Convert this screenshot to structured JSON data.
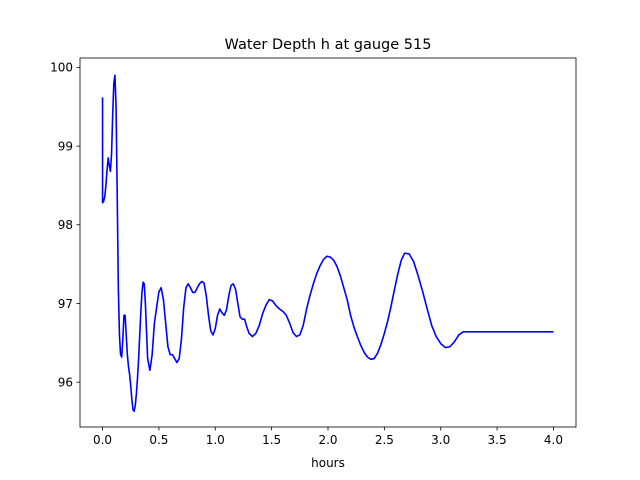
{
  "chart_data": {
    "type": "line",
    "title": "Water Depth h at gauge 515",
    "xlabel": "hours",
    "ylabel": "",
    "xlim": [
      -0.2,
      4.2
    ],
    "ylim": [
      95.43,
      100.12
    ],
    "xticks": [
      0.0,
      0.5,
      1.0,
      1.5,
      2.0,
      2.5,
      3.0,
      3.5,
      4.0
    ],
    "xtick_labels": [
      "0.0",
      "0.5",
      "1.0",
      "1.5",
      "2.0",
      "2.5",
      "3.0",
      "3.5",
      "4.0"
    ],
    "yticks": [
      96,
      97,
      98,
      99,
      100
    ],
    "ytick_labels": [
      "96",
      "97",
      "98",
      "99",
      "100"
    ],
    "grid": false,
    "legend": null,
    "series": [
      {
        "color": "#0000ff",
        "x": [
          0.0,
          0.0,
          0.01,
          0.02,
          0.03,
          0.04,
          0.05,
          0.06,
          0.07,
          0.08,
          0.09,
          0.1,
          0.11,
          0.12,
          0.13,
          0.14,
          0.15,
          0.16,
          0.17,
          0.18,
          0.19,
          0.2,
          0.21,
          0.22,
          0.23,
          0.24,
          0.25,
          0.26,
          0.27,
          0.28,
          0.29,
          0.3,
          0.31,
          0.32,
          0.33,
          0.34,
          0.35,
          0.36,
          0.37,
          0.38,
          0.39,
          0.4,
          0.42,
          0.44,
          0.46,
          0.48,
          0.5,
          0.52,
          0.54,
          0.56,
          0.58,
          0.6,
          0.62,
          0.64,
          0.66,
          0.68,
          0.7,
          0.72,
          0.74,
          0.76,
          0.78,
          0.8,
          0.82,
          0.84,
          0.86,
          0.88,
          0.9,
          0.92,
          0.94,
          0.96,
          0.98,
          1.0,
          1.02,
          1.04,
          1.06,
          1.08,
          1.1,
          1.12,
          1.14,
          1.16,
          1.18,
          1.2,
          1.22,
          1.24,
          1.26,
          1.28,
          1.3,
          1.33,
          1.36,
          1.39,
          1.42,
          1.45,
          1.48,
          1.51,
          1.54,
          1.57,
          1.6,
          1.63,
          1.66,
          1.69,
          1.72,
          1.75,
          1.78,
          1.81,
          1.84,
          1.87,
          1.9,
          1.93,
          1.96,
          1.99,
          2.02,
          2.05,
          2.08,
          2.11,
          2.14,
          2.17,
          2.2,
          2.23,
          2.26,
          2.29,
          2.32,
          2.35,
          2.38,
          2.41,
          2.44,
          2.47,
          2.5,
          2.53,
          2.56,
          2.59,
          2.62,
          2.65,
          2.68,
          2.72,
          2.76,
          2.8,
          2.84,
          2.88,
          2.92,
          2.96,
          3.0,
          3.04,
          3.08,
          3.12,
          3.16,
          3.2,
          3.24,
          3.28,
          3.32,
          3.36,
          3.4,
          3.44,
          3.48,
          3.52,
          3.56,
          3.6,
          3.64,
          3.68,
          3.72,
          3.76,
          3.8,
          3.84,
          3.88,
          3.92,
          3.96,
          4.0
        ],
        "y": [
          99.62,
          98.28,
          98.3,
          98.36,
          98.5,
          98.7,
          98.85,
          98.75,
          98.68,
          98.9,
          99.4,
          99.8,
          99.9,
          99.5,
          98.4,
          97.2,
          96.6,
          96.35,
          96.32,
          96.55,
          96.85,
          96.85,
          96.6,
          96.35,
          96.2,
          96.1,
          95.95,
          95.78,
          95.65,
          95.63,
          95.7,
          95.85,
          96.05,
          96.3,
          96.6,
          96.9,
          97.15,
          97.27,
          97.25,
          97.0,
          96.65,
          96.3,
          96.15,
          96.35,
          96.75,
          96.95,
          97.15,
          97.2,
          97.05,
          96.75,
          96.45,
          96.35,
          96.35,
          96.3,
          96.25,
          96.3,
          96.55,
          96.95,
          97.2,
          97.25,
          97.2,
          97.14,
          97.14,
          97.2,
          97.25,
          97.28,
          97.26,
          97.1,
          96.85,
          96.65,
          96.6,
          96.68,
          96.85,
          96.93,
          96.88,
          96.85,
          96.92,
          97.1,
          97.23,
          97.25,
          97.18,
          97.0,
          96.83,
          96.8,
          96.8,
          96.7,
          96.62,
          96.58,
          96.62,
          96.72,
          96.87,
          96.98,
          97.05,
          97.03,
          96.97,
          96.93,
          96.9,
          96.85,
          96.75,
          96.63,
          96.58,
          96.6,
          96.72,
          96.93,
          97.1,
          97.25,
          97.38,
          97.48,
          97.56,
          97.6,
          97.59,
          97.55,
          97.47,
          97.35,
          97.2,
          97.05,
          96.85,
          96.7,
          96.58,
          96.47,
          96.38,
          96.32,
          96.29,
          96.3,
          96.37,
          96.48,
          96.62,
          96.78,
          96.97,
          97.18,
          97.38,
          97.55,
          97.64,
          97.63,
          97.53,
          97.35,
          97.15,
          96.93,
          96.72,
          96.58,
          96.49,
          96.44,
          96.45,
          96.51,
          96.6,
          96.64,
          96.64,
          96.64,
          96.64,
          96.64,
          96.64,
          96.64,
          96.64,
          96.64,
          96.64,
          96.64,
          96.64,
          96.64,
          96.64,
          96.64,
          96.64,
          96.64,
          96.64,
          96.64,
          96.64,
          96.64
        ]
      }
    ]
  }
}
